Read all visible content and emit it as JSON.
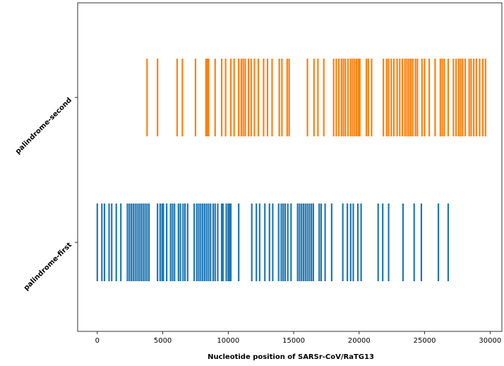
{
  "chart_data": {
    "type": "eventplot",
    "xlabel": "Nucleotide position of SARSr-CoV/RaTG13",
    "xlim": [
      -1500,
      30900
    ],
    "xticks": [
      0,
      5000,
      10000,
      15000,
      20000,
      25000,
      30000
    ],
    "xtick_labels": [
      "0",
      "5000",
      "10000",
      "15000",
      "20000",
      "25000",
      "30000"
    ],
    "categories": [
      "palindrome-first",
      "palindrome-second"
    ],
    "series": [
      {
        "name": "palindrome-first",
        "color": "#1f77b4",
        "positions": [
          0,
          350,
          550,
          900,
          1100,
          1450,
          1800,
          2300,
          2450,
          2600,
          2750,
          2900,
          3050,
          3200,
          3350,
          3500,
          3650,
          3800,
          3950,
          4600,
          4800,
          4950,
          5050,
          5300,
          5600,
          5750,
          5900,
          6200,
          6350,
          6550,
          6700,
          6900,
          7400,
          7600,
          7750,
          7900,
          8050,
          8200,
          8350,
          8500,
          8650,
          8850,
          9000,
          9200,
          9500,
          9600,
          9850,
          10000,
          10100,
          10200,
          10800,
          11800,
          12150,
          12400,
          12800,
          13150,
          13400,
          13850,
          14050,
          14200,
          14350,
          14550,
          14800,
          15300,
          15450,
          15600,
          15750,
          15900,
          16050,
          16200,
          16350,
          16500,
          16950,
          17100,
          17400,
          17900,
          18750,
          19100,
          19350,
          19550,
          19900,
          20150,
          21450,
          21800,
          22250,
          23350,
          24200,
          24750,
          26050,
          26800
        ]
      },
      {
        "name": "palindrome-second",
        "color": "#ff7f0e",
        "positions": [
          3800,
          4600,
          6100,
          6500,
          7500,
          8300,
          8400,
          8500,
          9000,
          9500,
          9800,
          10200,
          10450,
          10800,
          11000,
          11150,
          11300,
          11550,
          11750,
          12000,
          12300,
          12700,
          13000,
          13350,
          13900,
          14100,
          14500,
          14650,
          16050,
          16550,
          16850,
          17300,
          18050,
          18250,
          18450,
          18650,
          18800,
          18950,
          19150,
          19350,
          19500,
          19650,
          19800,
          19950,
          20050,
          20550,
          20700,
          20950,
          21850,
          22100,
          22250,
          22450,
          22650,
          22900,
          23100,
          23300,
          23500,
          23650,
          23800,
          23950,
          24100,
          24300,
          24450,
          24800,
          25000,
          25350,
          25800,
          26200,
          26350,
          26500,
          26800,
          27200,
          27400,
          27600,
          27750,
          27900,
          28100,
          28400,
          28550,
          28750,
          28950,
          29200,
          29450,
          29650
        ]
      }
    ],
    "grid": false,
    "legend": "none"
  }
}
